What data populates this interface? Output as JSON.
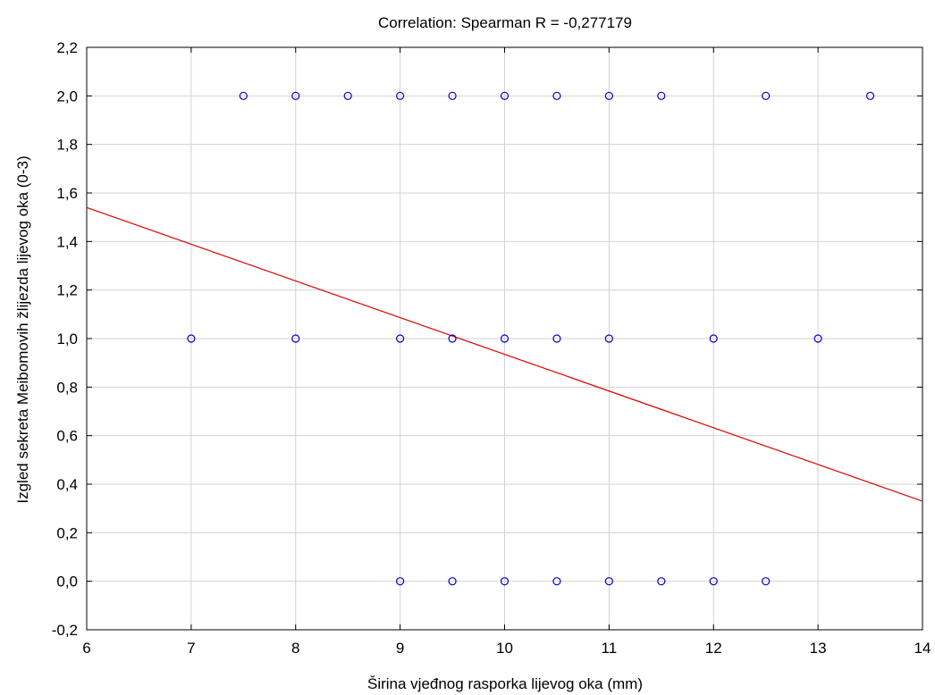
{
  "chart_data": {
    "type": "scatter",
    "title": "Correlation: Spearman R = -0,277179",
    "xlabel": "Širina vjeđnog rasporka lijevog oka (mm)",
    "ylabel": "Izgled sekreta Meibomovih žlijezda lijevog oka (0-3)",
    "xlim": [
      6,
      14
    ],
    "ylim": [
      -0.2,
      2.2
    ],
    "x_ticks": [
      6,
      7,
      8,
      9,
      10,
      11,
      12,
      13,
      14
    ],
    "x_tick_labels": [
      "6",
      "7",
      "8",
      "9",
      "10",
      "11",
      "12",
      "13",
      "14"
    ],
    "y_ticks": [
      -0.2,
      0.0,
      0.2,
      0.4,
      0.6,
      0.8,
      1.0,
      1.2,
      1.4,
      1.6,
      1.8,
      2.0,
      2.2
    ],
    "y_tick_labels": [
      "-0,2",
      "0,0",
      "0,2",
      "0,4",
      "0,6",
      "0,8",
      "1,0",
      "1,2",
      "1,4",
      "1,6",
      "1,8",
      "2,0",
      "2,2"
    ],
    "grid": true,
    "points": [
      {
        "x": 7.5,
        "y": 2.0
      },
      {
        "x": 8.0,
        "y": 2.0
      },
      {
        "x": 8.5,
        "y": 2.0
      },
      {
        "x": 9.0,
        "y": 2.0
      },
      {
        "x": 9.5,
        "y": 2.0
      },
      {
        "x": 10.0,
        "y": 2.0
      },
      {
        "x": 10.5,
        "y": 2.0
      },
      {
        "x": 11.0,
        "y": 2.0
      },
      {
        "x": 11.5,
        "y": 2.0
      },
      {
        "x": 12.5,
        "y": 2.0
      },
      {
        "x": 13.5,
        "y": 2.0
      },
      {
        "x": 7.0,
        "y": 1.0
      },
      {
        "x": 8.0,
        "y": 1.0
      },
      {
        "x": 9.0,
        "y": 1.0
      },
      {
        "x": 9.5,
        "y": 1.0
      },
      {
        "x": 10.0,
        "y": 1.0
      },
      {
        "x": 10.5,
        "y": 1.0
      },
      {
        "x": 11.0,
        "y": 1.0
      },
      {
        "x": 12.0,
        "y": 1.0
      },
      {
        "x": 13.0,
        "y": 1.0
      },
      {
        "x": 9.0,
        "y": 0.0
      },
      {
        "x": 9.5,
        "y": 0.0
      },
      {
        "x": 10.0,
        "y": 0.0
      },
      {
        "x": 10.5,
        "y": 0.0
      },
      {
        "x": 11.0,
        "y": 0.0
      },
      {
        "x": 11.5,
        "y": 0.0
      },
      {
        "x": 12.0,
        "y": 0.0
      },
      {
        "x": 12.5,
        "y": 0.0
      }
    ],
    "fit_line": {
      "x": [
        6,
        14
      ],
      "y": [
        1.54,
        0.33
      ]
    },
    "colors": {
      "points": "#0000cc",
      "fit_line": "#dd0000",
      "grid": "#d3d3d3"
    }
  }
}
